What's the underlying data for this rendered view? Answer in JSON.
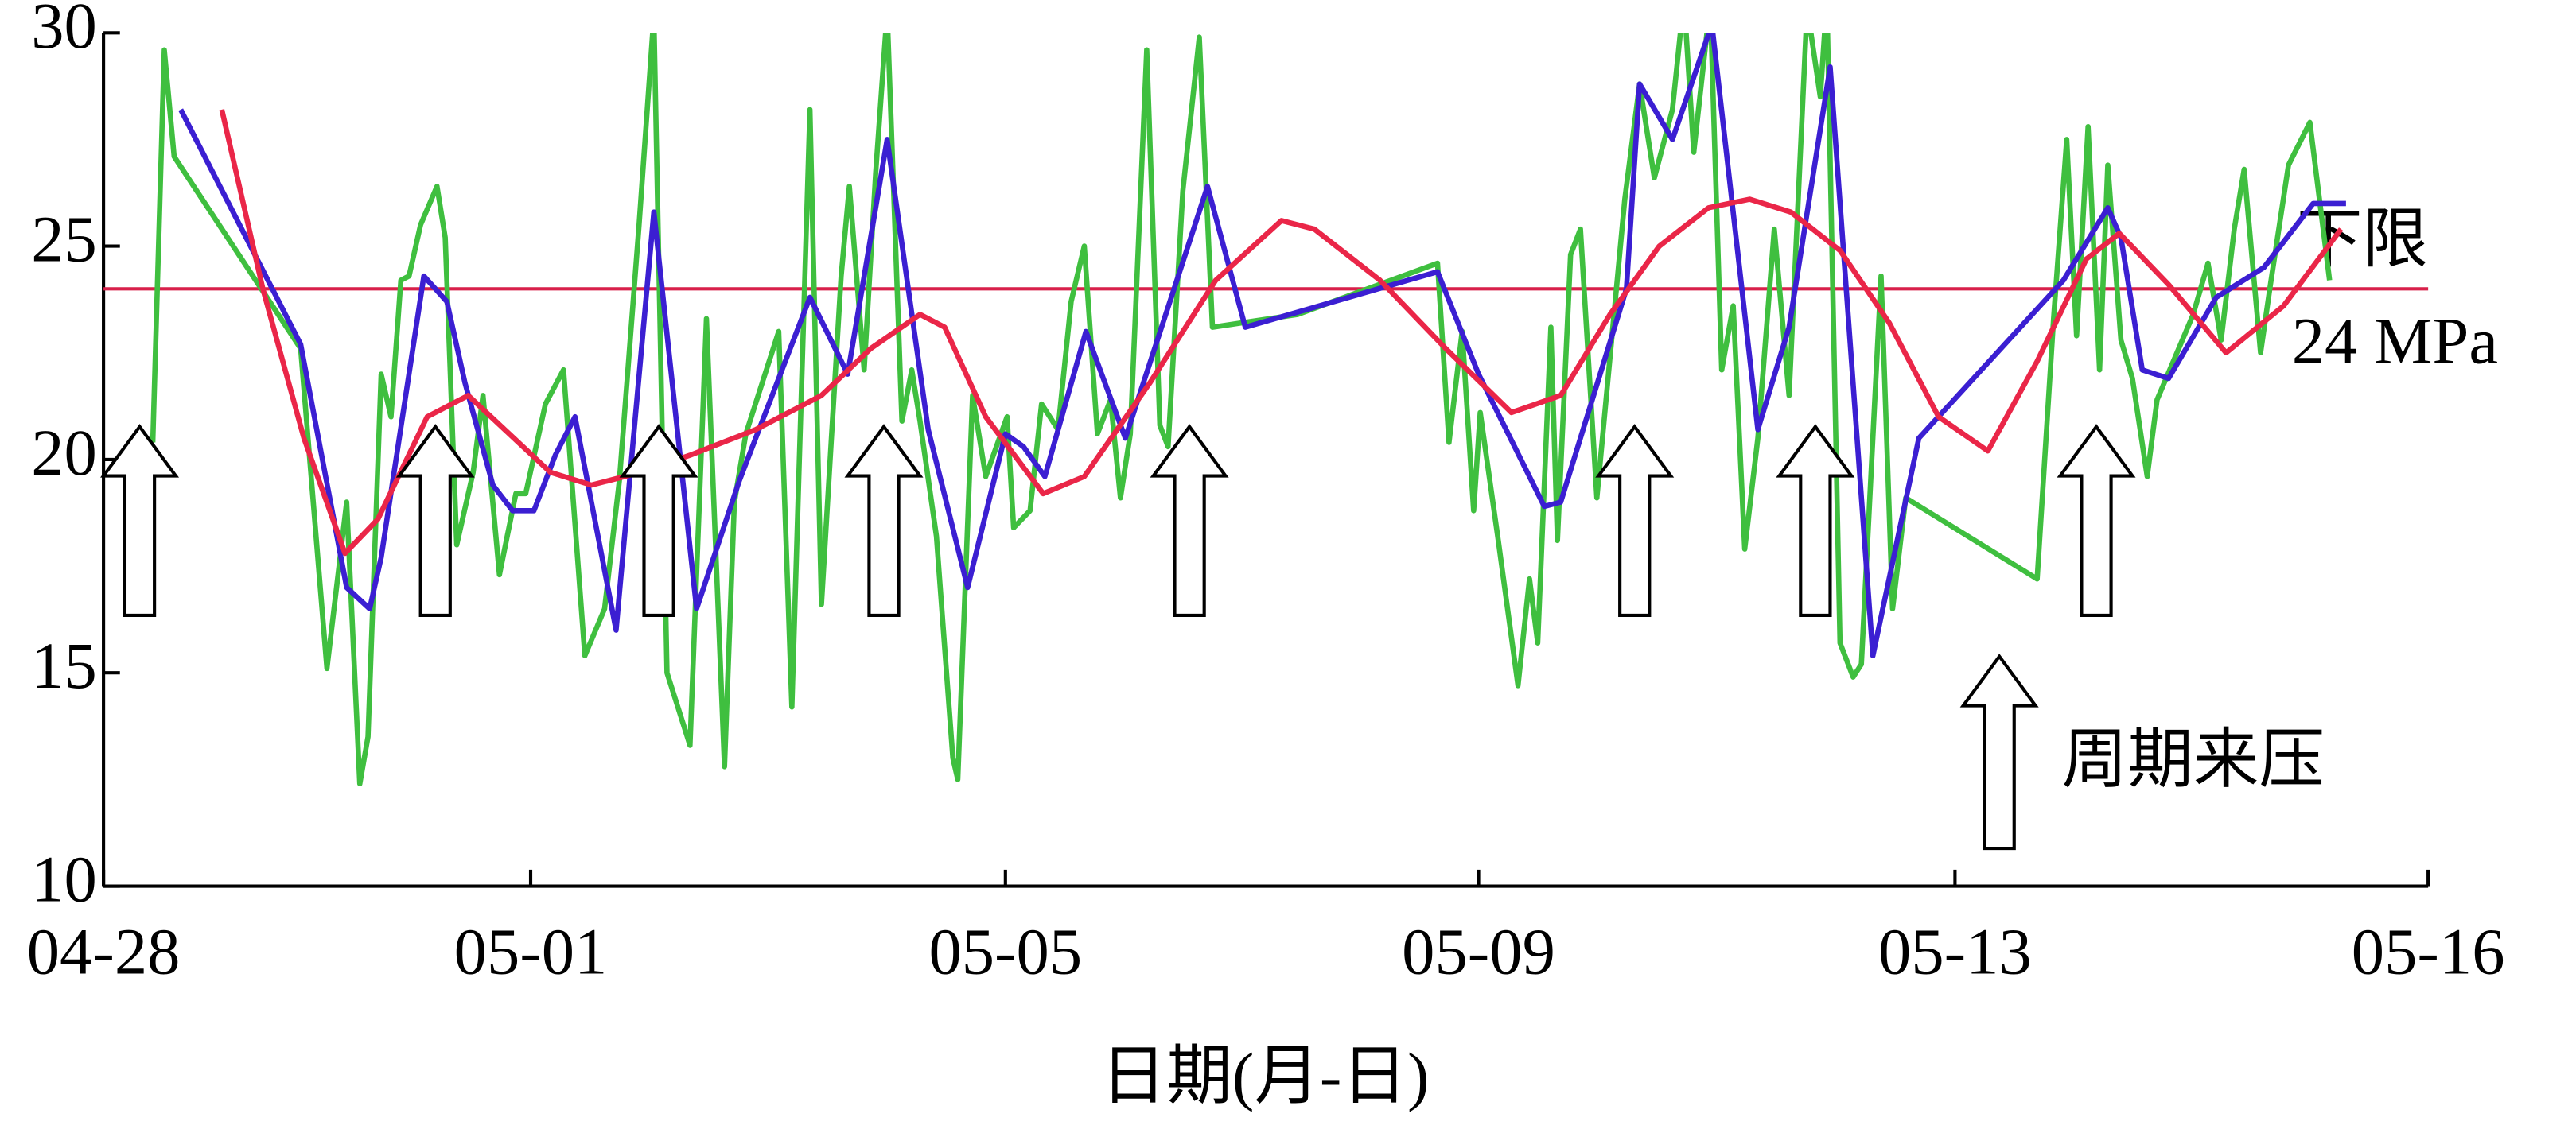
{
  "chart_data": {
    "type": "line",
    "x_label": "日期(月-日)",
    "xlim": [
      0,
      1415
    ],
    "xticks": [
      {
        "value": 0,
        "label": "04-28"
      },
      {
        "value": 260,
        "label": "05-01"
      },
      {
        "value": 549,
        "label": "05-05"
      },
      {
        "value": 837,
        "label": "05-09"
      },
      {
        "value": 1127,
        "label": "05-13"
      },
      {
        "value": 1415,
        "label": "05-16"
      }
    ],
    "ylim": [
      10,
      30
    ],
    "yticks": [
      10,
      15,
      20,
      25,
      30
    ],
    "threshold": {
      "name": "下限",
      "value": 24,
      "label": "24 MPa",
      "color": "#d8204a"
    },
    "annotation": "周期来压",
    "series": [
      {
        "color": "#3fbf3f",
        "x": [
          30,
          37,
          43,
          120,
          136,
          148,
          156,
          161,
          169,
          175,
          181,
          186,
          193,
          203,
          208,
          215,
          225,
          231,
          241,
          251,
          257,
          269,
          280,
          293,
          305,
          314,
          326,
          335,
          343,
          357,
          367,
          378,
          384,
          391,
          411,
          419,
          430,
          437,
          449,
          454,
          463,
          470,
          477,
          486,
          492,
          497,
          507,
          517,
          520,
          529,
          537,
          550,
          554,
          564,
          571,
          581,
          589,
          597,
          605,
          613,
          619,
          625,
          635,
          643,
          648,
          657,
          667,
          675,
          727,
          812,
          819,
          827,
          834,
          838,
          849,
          861,
          868,
          873,
          881,
          885,
          893,
          899,
          909,
          926,
          935,
          944,
          955,
          962,
          968,
          978,
          985,
          992,
          999,
          1007,
          1017,
          1026,
          1037,
          1045,
          1049,
          1057,
          1065,
          1070,
          1082,
          1089,
          1097,
          1177,
          1187,
          1195,
          1201,
          1208,
          1215,
          1220,
          1228,
          1235,
          1244,
          1250,
          1272,
          1281,
          1289,
          1297,
          1303,
          1313,
          1319,
          1330,
          1343,
          1355
        ],
        "values": [
          20.4,
          29.6,
          27.1,
          22.6,
          15.1,
          19,
          12.4,
          13.5,
          22,
          21,
          24.2,
          24.3,
          25.5,
          26.4,
          25.2,
          18,
          19.7,
          21.5,
          17.3,
          19.2,
          19.2,
          21.3,
          22.1,
          15.4,
          16.5,
          19.5,
          25.5,
          30.4,
          15,
          13.3,
          23.3,
          12.8,
          19,
          20.6,
          23,
          14.2,
          28.2,
          16.6,
          24.3,
          26.4,
          22.1,
          26.7,
          30.5,
          20.9,
          22.1,
          20.9,
          18.2,
          13,
          12.5,
          21.5,
          19.6,
          21,
          18.4,
          18.8,
          21.3,
          20.7,
          23.7,
          25,
          20.6,
          21.4,
          19.1,
          20.6,
          29.6,
          20.8,
          20.3,
          26.3,
          29.9,
          23.1,
          23.4,
          24.6,
          20.4,
          23,
          18.8,
          21.1,
          18.1,
          14.7,
          17.2,
          15.7,
          23.1,
          18.1,
          24.8,
          25.4,
          19.1,
          26.1,
          28.8,
          26.6,
          28.2,
          30.8,
          27.2,
          30.7,
          22.1,
          23.6,
          17.9,
          20.5,
          25.4,
          21.5,
          30.6,
          28.5,
          30.8,
          15.7,
          14.9,
          15.2,
          24.3,
          16.5,
          19.1,
          17.2,
          23.3,
          27.5,
          22.9,
          27.8,
          22.1,
          26.9,
          22.8,
          21.9,
          19.6,
          21.4,
          23.4,
          24.6,
          22.8,
          25.4,
          26.8,
          22.5,
          24.1,
          26.9,
          27.9,
          24.2
        ]
      },
      {
        "color": "#3b1fd2",
        "x": [
          47,
          120,
          148,
          162,
          169,
          195,
          209,
          220,
          237,
          249,
          262,
          275,
          287,
          312,
          335,
          361,
          387,
          430,
          453,
          477,
          502,
          526,
          549,
          560,
          573,
          598,
          622,
          672,
          695,
          812,
          837,
          877,
          887,
          927,
          935,
          955,
          979,
          1007,
          1026,
          1051,
          1077,
          1105,
          1193,
          1220,
          1228,
          1241,
          1257,
          1286,
          1315,
          1345,
          1365
        ],
        "values": [
          28.2,
          22.7,
          17,
          16.5,
          17.7,
          24.3,
          23.7,
          21.8,
          19.4,
          18.8,
          18.8,
          20.1,
          21,
          16,
          25.8,
          16.5,
          19.5,
          23.8,
          22,
          27.5,
          20.7,
          17,
          20.6,
          20.3,
          19.6,
          23,
          20.5,
          26.4,
          23.1,
          24.4,
          22,
          18.9,
          19,
          24,
          28.8,
          27.5,
          30.2,
          20.7,
          23.1,
          29.2,
          15.4,
          20.5,
          24.2,
          25.9,
          25.2,
          22.1,
          21.9,
          23.8,
          24.5,
          26,
          26
        ]
      },
      {
        "color": "#ea2648",
        "x": [
          72,
          97,
          122,
          147,
          167,
          197,
          222,
          247,
          272,
          297,
          327,
          357,
          397,
          437,
          467,
          497,
          512,
          537,
          572,
          597,
          637,
          677,
          717,
          737,
          777,
          817,
          857,
          887,
          917,
          947,
          977,
          1002,
          1027,
          1057,
          1087,
          1117,
          1147,
          1177,
          1207,
          1227,
          1257,
          1292,
          1327,
          1362
        ],
        "values": [
          28.2,
          24,
          20.5,
          17.8,
          18.6,
          21,
          21.5,
          20.6,
          19.7,
          19.4,
          19.7,
          20.1,
          20.7,
          21.5,
          22.6,
          23.4,
          23.1,
          21,
          19.2,
          19.6,
          21.8,
          24.2,
          25.6,
          25.4,
          24.2,
          22.6,
          21.1,
          21.5,
          23.4,
          25,
          25.9,
          26.1,
          25.8,
          24.9,
          23.2,
          21,
          20.2,
          22.3,
          24.7,
          25.3,
          24.1,
          22.5,
          23.6,
          25.4
        ]
      }
    ]
  }
}
